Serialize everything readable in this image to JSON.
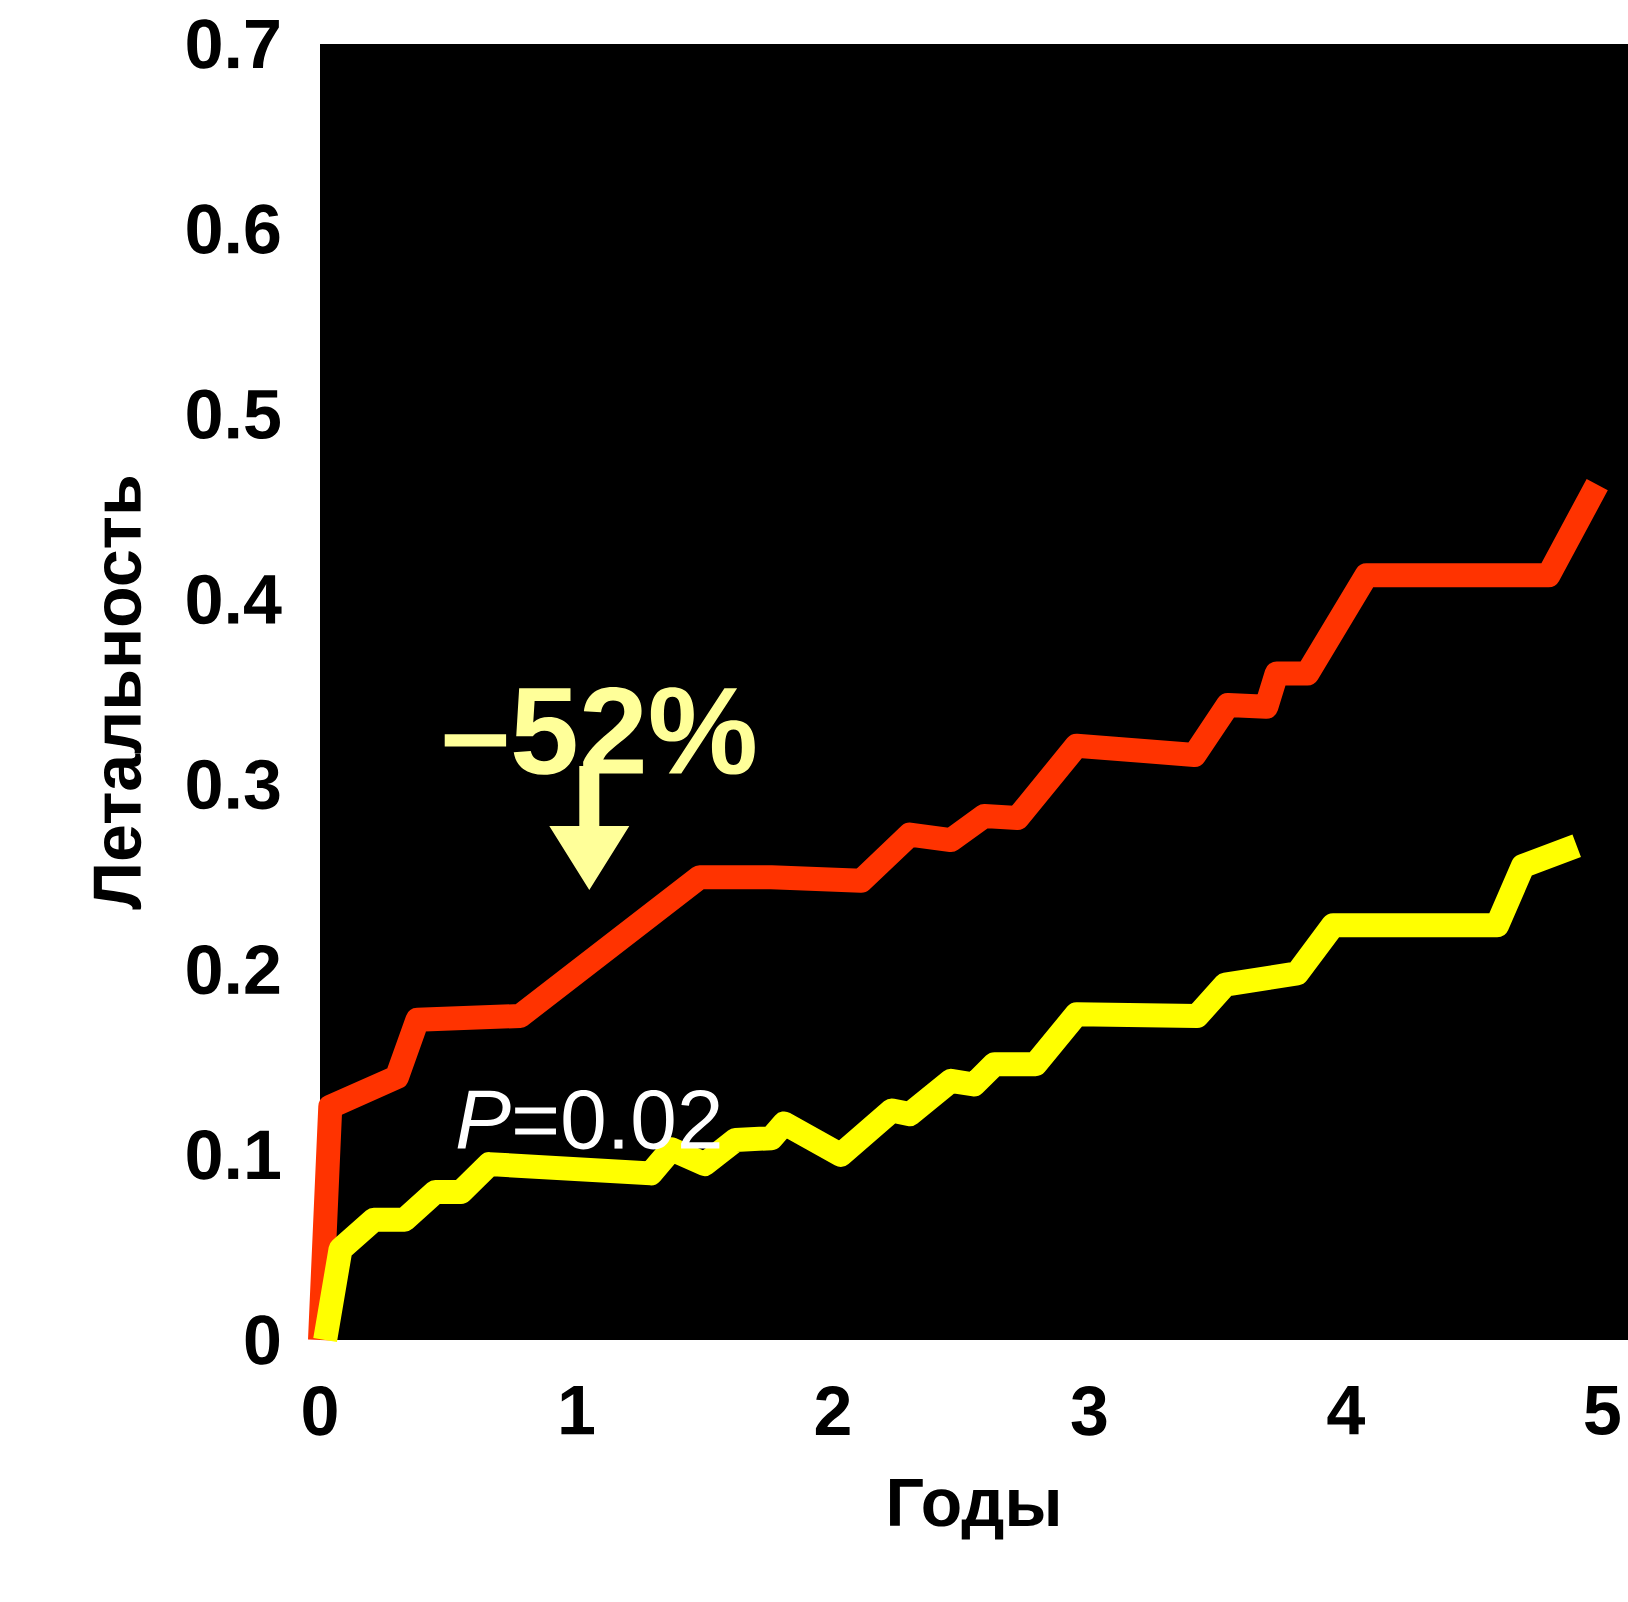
{
  "chart_data": {
    "type": "line",
    "xlabel": "Годы",
    "ylabel": "Летальность",
    "xlim": [
      0,
      5.1
    ],
    "ylim": [
      0,
      0.7
    ],
    "xticks": [
      0,
      1,
      2,
      3,
      4,
      5
    ],
    "yticks": [
      0,
      0.1,
      0.2,
      0.3,
      0.4,
      0.5,
      0.6,
      0.7
    ],
    "line_style": "solid",
    "marker": "none",
    "annotations": [
      "–52%",
      "*P*=0.02"
    ],
    "series": [
      {
        "color": "#ff3300",
        "x": [
          0,
          0.04,
          0.3,
          0.38,
          0.78,
          1.48,
          1.76,
          2.11,
          2.3,
          2.46,
          2.59,
          2.72,
          2.95,
          3.41,
          3.54,
          3.69,
          3.73,
          3.85,
          4.08,
          4.79,
          4.98
        ],
        "values": [
          0,
          0.126,
          0.142,
          0.173,
          0.175,
          0.25,
          0.25,
          0.248,
          0.273,
          0.27,
          0.283,
          0.282,
          0.321,
          0.316,
          0.343,
          0.342,
          0.36,
          0.36,
          0.413,
          0.413,
          0.462
        ]
      },
      {
        "color": "#ffff00",
        "x": [
          0.02,
          0.08,
          0.21,
          0.33,
          0.45,
          0.55,
          0.66,
          1.29,
          1.37,
          1.5,
          1.62,
          1.76,
          1.81,
          2.03,
          2.23,
          2.3,
          2.46,
          2.55,
          2.63,
          2.79,
          2.95,
          3.42,
          3.53,
          3.81,
          3.95,
          4.59,
          4.69,
          4.9
        ],
        "values": [
          0,
          0.049,
          0.065,
          0.065,
          0.08,
          0.08,
          0.095,
          0.09,
          0.103,
          0.095,
          0.108,
          0.109,
          0.117,
          0.1,
          0.124,
          0.122,
          0.14,
          0.138,
          0.149,
          0.149,
          0.176,
          0.175,
          0.192,
          0.198,
          0.224,
          0.224,
          0.256,
          0.267
        ]
      }
    ]
  }
}
